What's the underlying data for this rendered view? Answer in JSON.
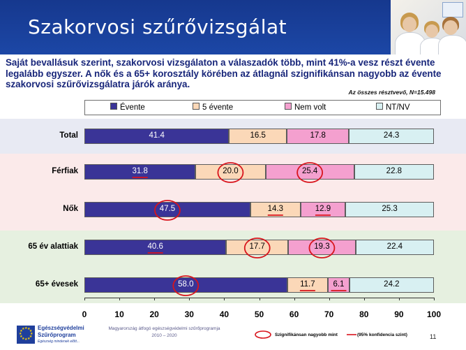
{
  "header": {
    "title": "Szakorvosi szűrővizsgálat"
  },
  "intro_text": "Saját bevallásuk szerint, szakorvosi vizsgálaton a válaszadók több, mint 41%-a vesz részt évente legalább egyszer. A nők és a 65+ korosztály körében az átlagnál szignifikánsan nagyobb az évente szakorvosi szűrővizsgálatra járók aránya.",
  "sample_note": "Az összes résztvevő, N=15.498",
  "colors": {
    "header_bg": "#1b45a3",
    "intro_text": "#18267a",
    "highlight_circle": "#d8141c",
    "band_total": "#e8eaf3",
    "band_gender": "#fbeaea",
    "band_age": "#e6f0e0"
  },
  "chart_data": {
    "type": "bar",
    "orientation": "horizontal",
    "stacked": true,
    "categories": [
      "Total",
      "Férfiak",
      "Nők",
      "65 év alattiak",
      "65+ évesek"
    ],
    "series": [
      {
        "name": "Évente",
        "color": "#3a3497",
        "label_color": "#ffffff",
        "values": [
          41.4,
          31.8,
          47.5,
          40.6,
          58.0
        ]
      },
      {
        "name": "5 évente",
        "color": "#fbd8b8",
        "label_color": "#000000",
        "values": [
          16.5,
          20.0,
          14.3,
          17.7,
          11.7
        ]
      },
      {
        "name": "Nem volt",
        "color": "#f4a0cf",
        "label_color": "#000000",
        "values": [
          17.8,
          25.4,
          12.9,
          19.3,
          6.1
        ]
      },
      {
        "name": "NT/NV",
        "color": "#d8f0f2",
        "label_color": "#000000",
        "values": [
          24.3,
          22.8,
          25.3,
          22.4,
          24.2
        ]
      }
    ],
    "value_labels": [
      [
        "41.4",
        "16.5",
        "17.8",
        "24.3"
      ],
      [
        "31.8",
        "20.0",
        "25.4",
        "22.8"
      ],
      [
        "47.5",
        "14.3",
        "12.9",
        "25.3"
      ],
      [
        "40.6",
        "17.7",
        "19.3",
        "22.4"
      ],
      [
        "58.0",
        "11.7",
        "6.1",
        "24.2"
      ]
    ],
    "significant_circled": [
      [],
      [
        1,
        2
      ],
      [
        0
      ],
      [
        1,
        2
      ],
      [
        0
      ]
    ],
    "significant_underlined": [
      [],
      [
        0
      ],
      [
        1,
        2
      ],
      [
        0
      ],
      [
        1,
        2
      ]
    ],
    "xlim": [
      0,
      100
    ],
    "xticks": [
      "0",
      "10",
      "20",
      "30",
      "40",
      "50",
      "60",
      "70",
      "80",
      "90",
      "100"
    ],
    "legend_position": "top"
  },
  "footer": {
    "eu_logo_title": "Egészségvédelmi",
    "eu_logo_subtitle": "Szűrőprogram",
    "eu_logo_tagline": "Egészség mindenek előtt...",
    "program_line1": "Magyarország átfogó egészségvédelmi szűrőprogramja",
    "program_line2": "2010 – 2020",
    "legend_significant_higher": "Szignifikánsan nagyobb mint",
    "legend_confidence": "(95% konfidencia szint)",
    "page_number": "11"
  }
}
